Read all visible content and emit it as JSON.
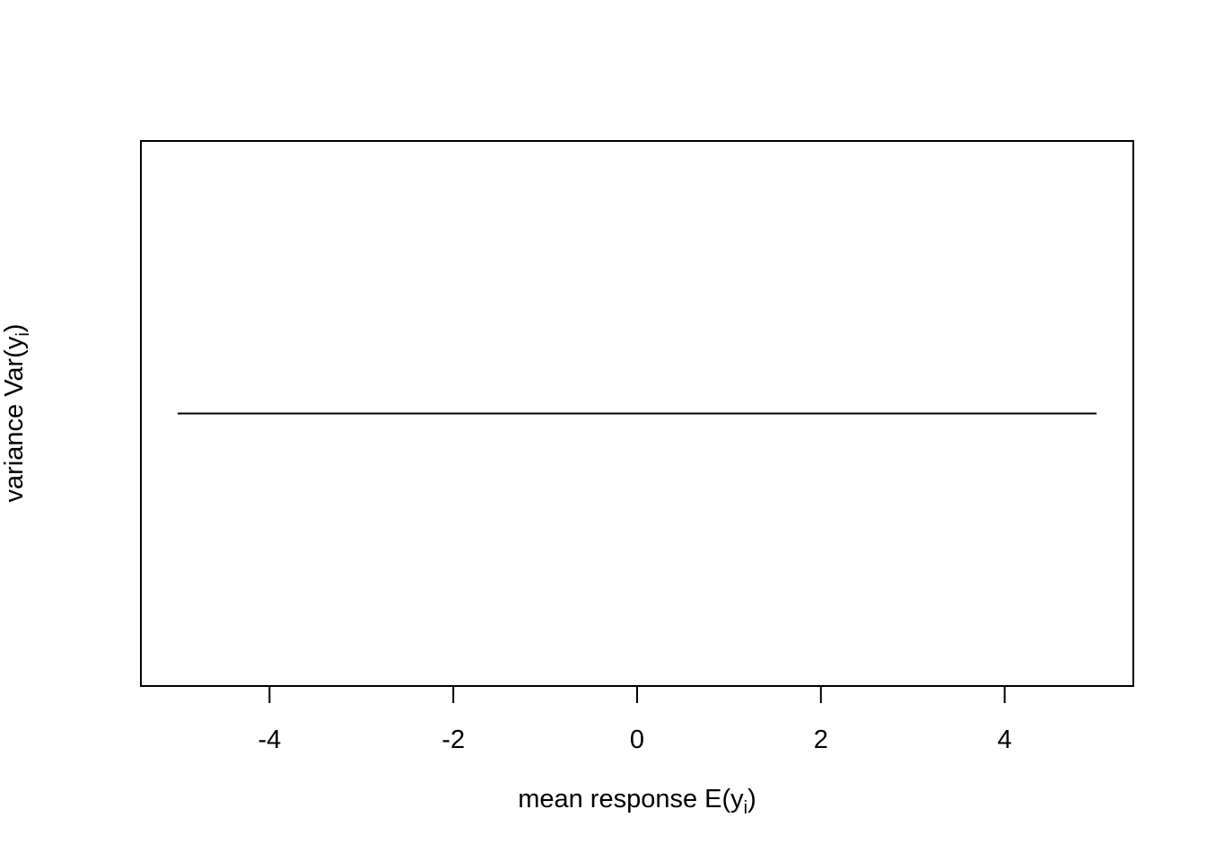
{
  "chart_data": {
    "type": "line",
    "title": "",
    "xlabel": "mean response E(y_i)",
    "ylabel": "variance Var(y_i)",
    "xlim": [
      -5.4,
      5.4
    ],
    "ylim": [
      0,
      2
    ],
    "x_ticks": [
      -4,
      -2,
      0,
      2,
      4
    ],
    "x_tick_labels": [
      "-4",
      "-2",
      "0",
      "2",
      "4"
    ],
    "y_ticks": [],
    "grid": false,
    "series": [
      {
        "x": [
          -5,
          5
        ],
        "y": [
          1,
          1
        ],
        "color": "#000000"
      }
    ]
  }
}
